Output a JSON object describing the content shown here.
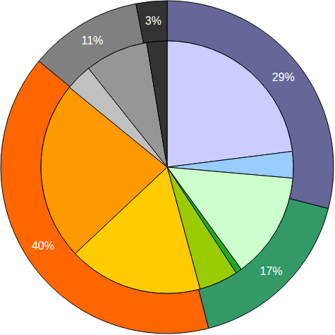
{
  "chart_data": {
    "type": "pie",
    "data_labels": true,
    "series": [
      {
        "values": [
          29,
          17,
          40,
          11,
          3
        ],
        "value_labels": [
          "29%",
          "17%",
          "40%",
          "11%",
          "3%"
        ],
        "colors": [
          "#666699",
          "#339966",
          "#ff6600",
          "#808080",
          "#333333"
        ]
      },
      {
        "values": [
          23,
          3.4,
          13.6,
          0.8,
          5,
          17.2,
          22.9,
          3.4,
          8.1,
          2.6
        ],
        "colors": [
          "#ccccff",
          "#99ccff",
          "#ccffcc",
          "#22aa22",
          "#99cc00",
          "#ffcc00",
          "#ff9900",
          "#c0c0c0",
          "#969696",
          "#333333"
        ]
      }
    ]
  }
}
